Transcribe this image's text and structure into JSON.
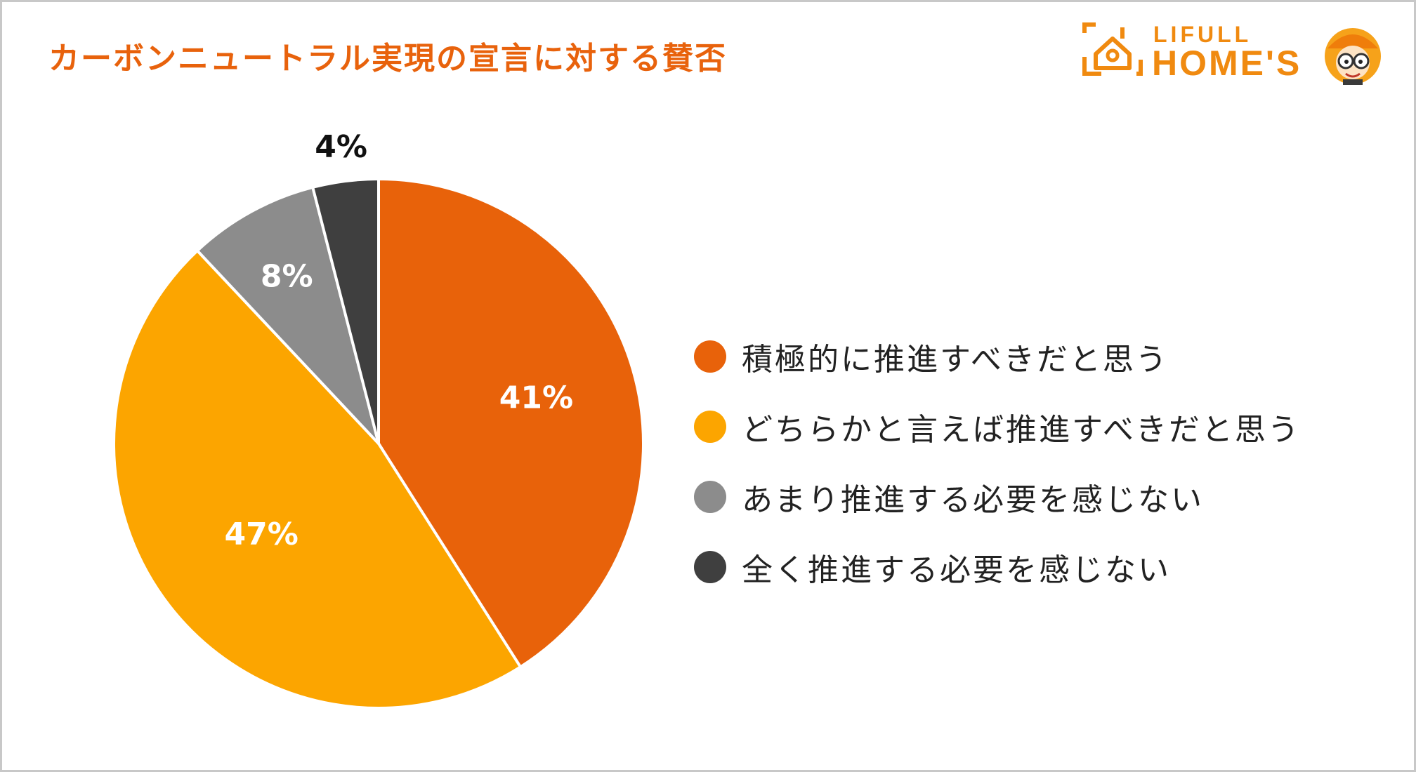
{
  "title": "カーボンニュートラル実現の宣言に対する賛否",
  "logo": {
    "top": "LIFULL",
    "main": "HOME'S"
  },
  "chart_data": {
    "type": "pie",
    "title": "カーボンニュートラル実現の宣言に対する賛否",
    "slices": [
      {
        "label": "積極的に推進すべきだと思う",
        "value": 41,
        "value_label": "41%",
        "color": "#e8620a",
        "label_color": "#ffffff"
      },
      {
        "label": "どちらかと言えば推進すべきだと思う",
        "value": 47,
        "value_label": "47%",
        "color": "#fca500",
        "label_color": "#ffffff"
      },
      {
        "label": "あまり推進する必要を感じない",
        "value": 8,
        "value_label": "8%",
        "color": "#8c8c8c",
        "label_color": "#ffffff"
      },
      {
        "label": "全く推進する必要を感じない",
        "value": 4,
        "value_label": "4%",
        "color": "#3f3f3f",
        "label_color": "#111111"
      }
    ],
    "start": "12 o'clock",
    "direction": "clockwise",
    "legend_position": "right"
  }
}
